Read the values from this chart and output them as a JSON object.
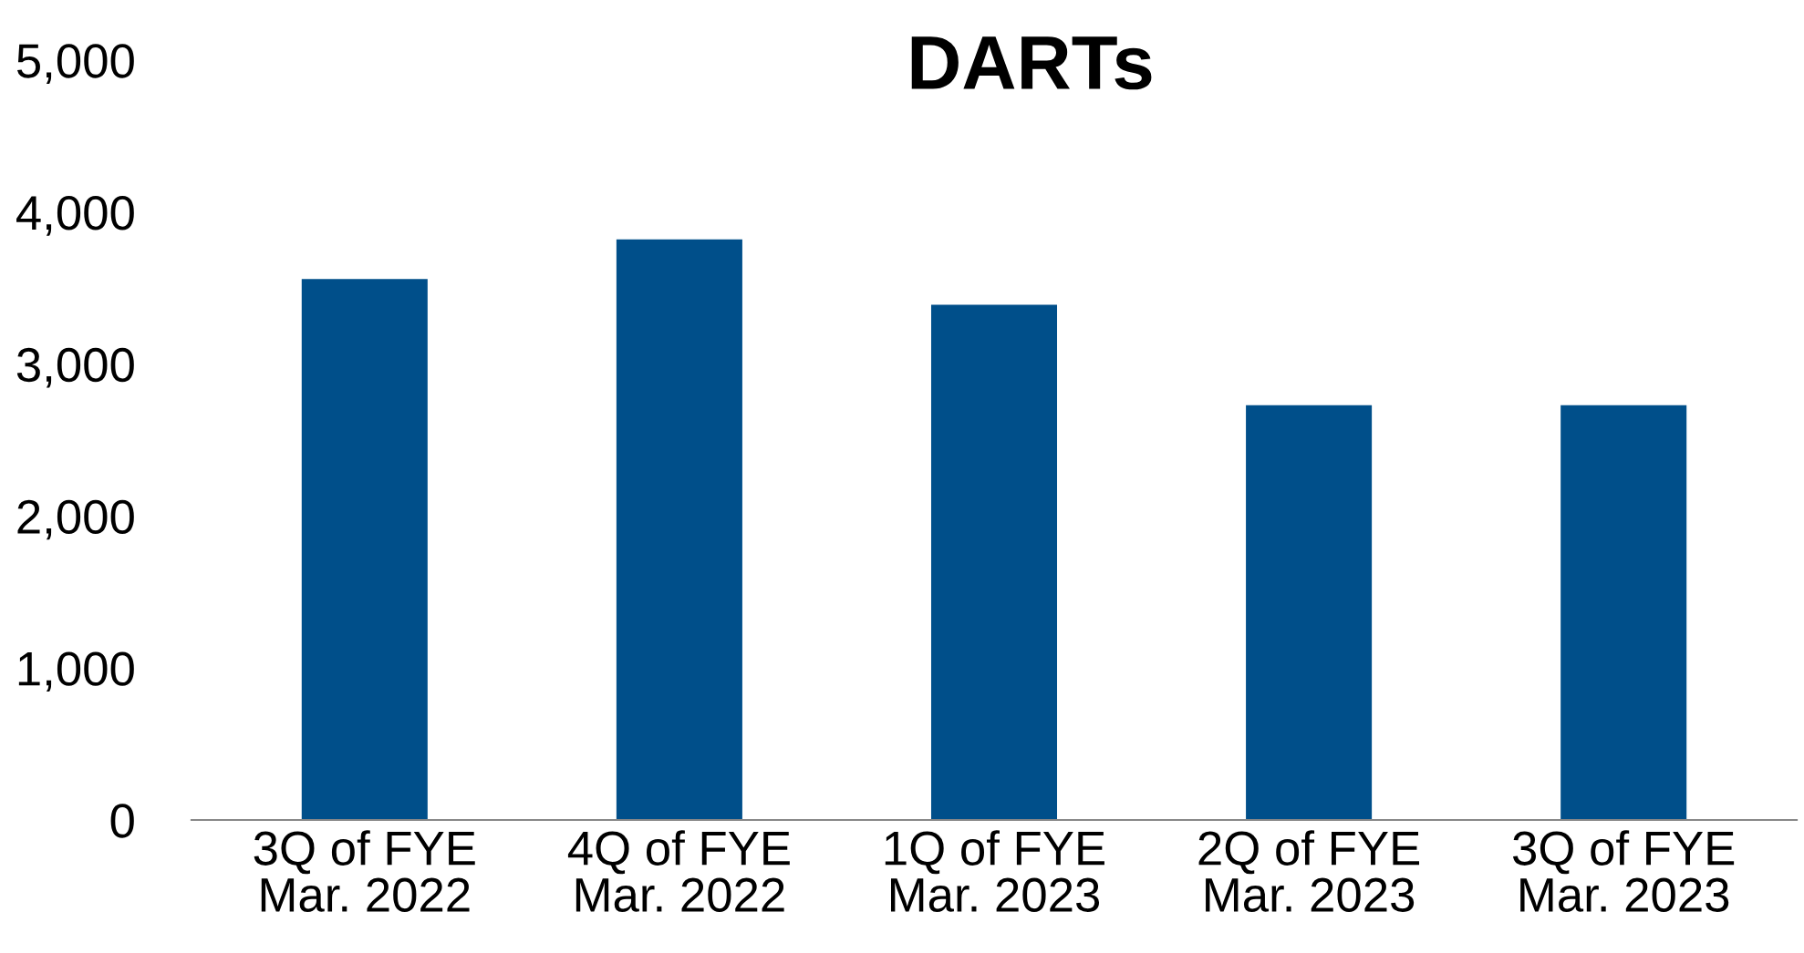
{
  "chart_data": {
    "type": "bar",
    "title": "DARTs",
    "categories": [
      "3Q of FYE\nMar. 2022",
      "4Q of FYE\nMar. 2022",
      "1Q of FYE\nMar. 2023",
      "2Q of FYE\nMar. 2023",
      "3Q of FYE\nMar. 2023"
    ],
    "values": [
      3560,
      3820,
      3390,
      2730,
      2730
    ],
    "color": "#004f8a",
    "ylim": [
      0,
      5000
    ],
    "yticks": [
      {
        "value": 0,
        "label": "0"
      },
      {
        "value": 1000,
        "label": "1,000"
      },
      {
        "value": 2000,
        "label": "2,000"
      },
      {
        "value": 3000,
        "label": "3,000"
      },
      {
        "value": 4000,
        "label": "4,000"
      },
      {
        "value": 5000,
        "label": "5,000"
      }
    ],
    "grid": false,
    "legend": false
  }
}
